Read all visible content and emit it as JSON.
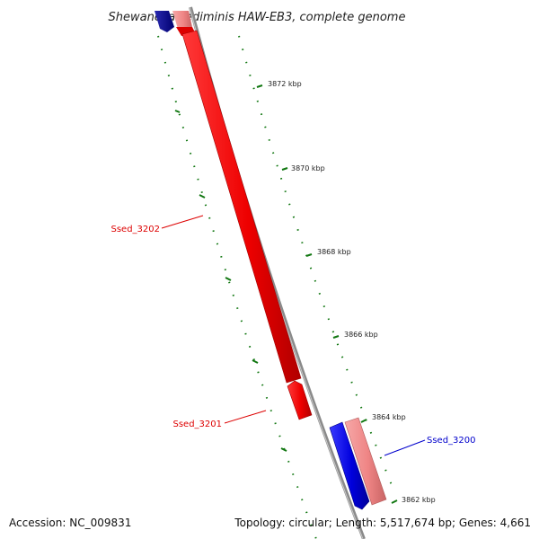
{
  "title": "Shewanella sediminis HAW-EB3, complete genome",
  "footer": {
    "accession": "Accession: NC_009831",
    "summary": "Topology: circular; Length: 5,517,674 bp; Genes: 4,661"
  },
  "kbp_markers": [
    "3872 kbp",
    "3870 kbp",
    "3868 kbp",
    "3866 kbp",
    "3864 kbp",
    "3862 kbp"
  ],
  "genes": [
    {
      "id": "Ssed_3202",
      "label": "Ssed_3202",
      "color": "#dd0000"
    },
    {
      "id": "Ssed_3201",
      "label": "Ssed_3201",
      "color": "#dd0000"
    },
    {
      "id": "Ssed_3200",
      "label": "Ssed_3200",
      "color": "#0000cc"
    }
  ],
  "colors": {
    "forward_strand": "#ee0000",
    "forward_strand_light": "#f08a8a",
    "reverse_strand": "#0000dd",
    "reverse_strand_dark": "#000088",
    "backbone": "#888888",
    "gc_ticks": "#117711"
  }
}
